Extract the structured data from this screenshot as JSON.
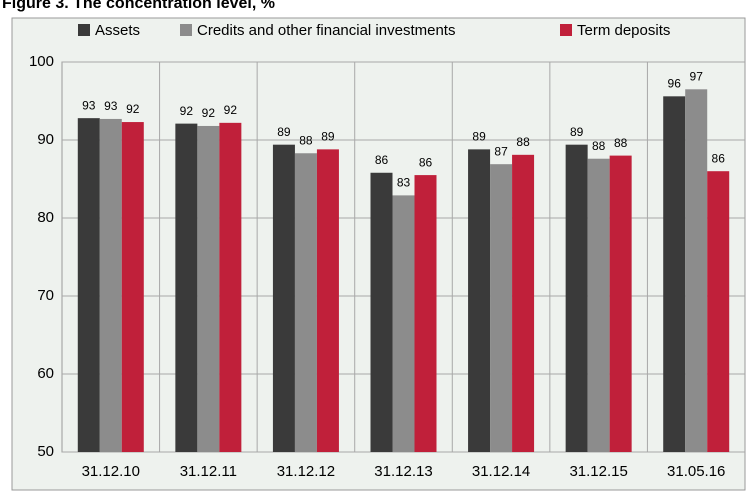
{
  "chart_data": {
    "type": "bar",
    "title": "Figure 3. The concentration level, %",
    "categories": [
      "31.12.10",
      "31.12.11",
      "31.12.12",
      "31.12.13",
      "31.12.14",
      "31.12.15",
      "31.05.16"
    ],
    "series": [
      {
        "name": "Assets",
        "color": "#3a3a3a",
        "values": [
          92.8,
          92.1,
          89.4,
          85.8,
          88.8,
          89.4,
          95.6
        ],
        "value_labels": [
          "93",
          "92",
          "89",
          "86",
          "89",
          "89",
          "96"
        ]
      },
      {
        "name": "Credits and other financial investments",
        "color": "#8c8c8c",
        "values": [
          92.7,
          91.8,
          88.3,
          82.9,
          86.9,
          87.6,
          96.5
        ],
        "value_labels": [
          "93",
          "92",
          "88",
          "83",
          "87",
          "88",
          "97"
        ]
      },
      {
        "name": "Term deposits",
        "color": "#c0203a",
        "values": [
          92.3,
          92.2,
          88.8,
          85.5,
          88.1,
          88.0,
          86.0
        ],
        "value_labels": [
          "92",
          "92",
          "89",
          "86",
          "88",
          "88",
          "86"
        ]
      }
    ],
    "ylim": [
      50,
      100
    ],
    "yticks": [
      50,
      60,
      70,
      80,
      90,
      100
    ],
    "grid": true,
    "legend": "top"
  }
}
